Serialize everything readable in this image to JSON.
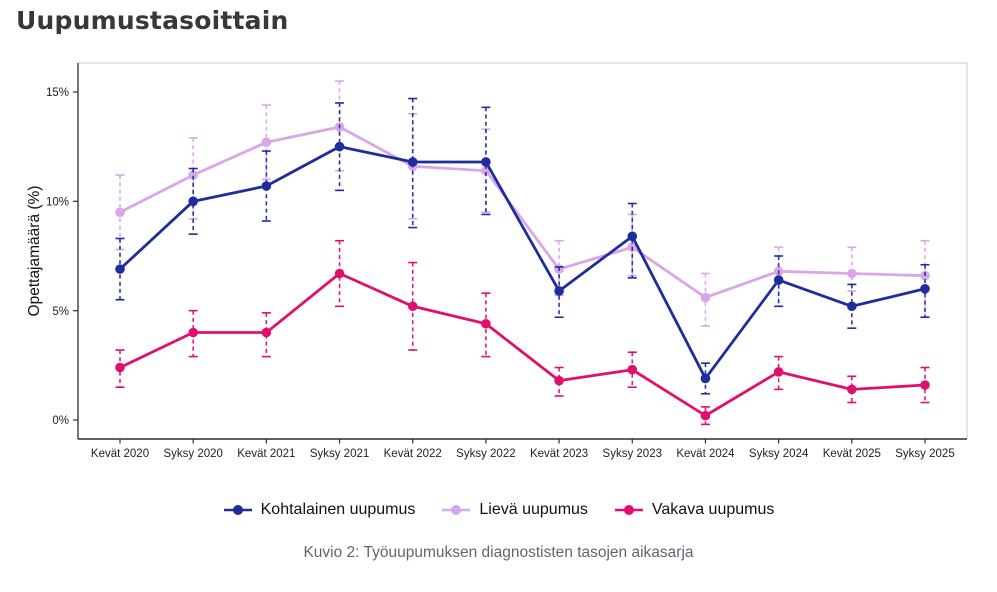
{
  "page": {
    "title": "Uupumustasoittain",
    "caption": "Kuvio 2: Työuupumuksen diagnostisten tasojen aikasarja"
  },
  "chart_data": {
    "type": "line",
    "title": "Uupumustasoittain",
    "xlabel": "",
    "ylabel": "Opettajamäärä (%)",
    "ylim": [
      -0.9,
      16.3
    ],
    "yticks": [
      0,
      5,
      10,
      15
    ],
    "ytick_labels": [
      "0%",
      "5%",
      "10%",
      "15%"
    ],
    "grid": false,
    "legend_position": "bottom",
    "error_bars": "dashed vertical intervals with caps",
    "categories": [
      "Kevät 2020",
      "Syksy 2020",
      "Kevät 2021",
      "Syksy 2021",
      "Kevät 2022",
      "Syksy 2022",
      "Kevät 2023",
      "Syksy 2023",
      "Kevät 2024",
      "Syksy 2024",
      "Kevät 2025",
      "Syksy 2025"
    ],
    "series": [
      {
        "name": "Kohtalainen uupumus",
        "color": "#1f2d9c",
        "values": [
          6.9,
          10.0,
          10.7,
          12.5,
          11.8,
          11.8,
          5.9,
          8.4,
          1.9,
          6.4,
          5.2,
          6.0
        ],
        "ci_low": [
          5.5,
          8.5,
          9.1,
          10.5,
          8.8,
          9.4,
          4.7,
          6.5,
          1.2,
          5.2,
          4.2,
          4.7
        ],
        "ci_high": [
          8.3,
          11.5,
          12.3,
          14.5,
          14.7,
          14.3,
          7.0,
          9.9,
          2.6,
          7.5,
          6.2,
          7.1
        ]
      },
      {
        "name": "Lievä uupumus",
        "color": "#d9a6e9",
        "values": [
          9.5,
          11.2,
          12.7,
          13.4,
          11.6,
          11.4,
          6.9,
          7.9,
          5.6,
          6.8,
          6.7,
          6.6
        ],
        "ci_low": [
          7.8,
          9.2,
          11.0,
          11.4,
          9.2,
          9.5,
          5.7,
          6.6,
          4.3,
          5.2,
          5.9,
          4.7
        ],
        "ci_high": [
          11.2,
          12.9,
          14.4,
          15.5,
          14.0,
          13.3,
          8.2,
          9.4,
          6.7,
          7.9,
          7.9,
          8.2
        ]
      },
      {
        "name": "Vakava uupumus",
        "color": "#e00f6f",
        "values": [
          2.4,
          4.0,
          4.0,
          6.7,
          5.2,
          4.4,
          1.8,
          2.3,
          0.2,
          2.2,
          1.4,
          1.6
        ],
        "ci_low": [
          1.5,
          2.9,
          2.9,
          5.2,
          3.2,
          2.9,
          1.1,
          1.5,
          -0.2,
          1.4,
          0.8,
          0.8
        ],
        "ci_high": [
          3.2,
          5.0,
          4.9,
          8.2,
          7.2,
          5.8,
          2.4,
          3.1,
          0.6,
          2.9,
          2.0,
          2.4
        ]
      }
    ]
  }
}
